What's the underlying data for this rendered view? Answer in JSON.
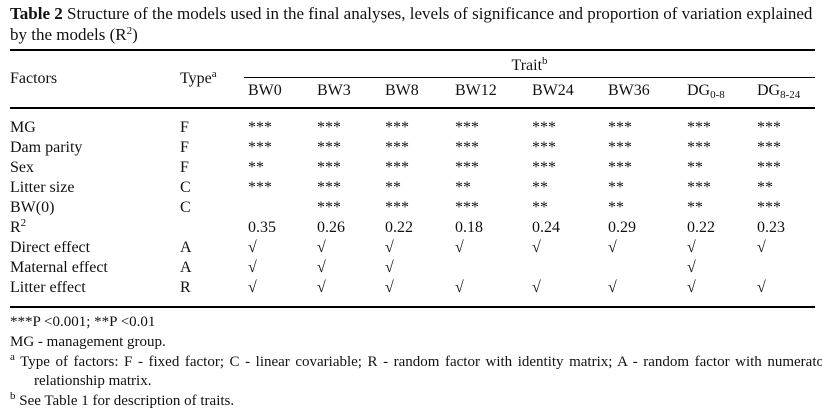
{
  "title": {
    "bold": "Table 2",
    "text": "Structure of the models used in the final analyses, levels of significance and proportion of variation explained by the models (R",
    "sup": "2",
    "tail": ")"
  },
  "table": {
    "factors_header": "Factors",
    "type_header": {
      "text": "Type",
      "sup": "a"
    },
    "trait_header": {
      "text": "Trait",
      "sup": "b"
    },
    "trait_columns": [
      {
        "text": "BW0"
      },
      {
        "text": "BW3"
      },
      {
        "text": "BW8"
      },
      {
        "text": "BW12"
      },
      {
        "text": "BW24"
      },
      {
        "text": "BW36"
      },
      {
        "text": "DG",
        "sub": "0-8"
      },
      {
        "text": "DG",
        "sub": "8-24"
      }
    ],
    "rows": [
      {
        "label": {
          "text": "MG"
        },
        "type": "F",
        "cells": [
          "***",
          "***",
          "***",
          "***",
          "***",
          "***",
          "***",
          "***"
        ]
      },
      {
        "label": {
          "text": "Dam parity"
        },
        "type": "F",
        "cells": [
          "***",
          "***",
          "***",
          "***",
          "***",
          "***",
          "***",
          "***"
        ]
      },
      {
        "label": {
          "text": "Sex"
        },
        "type": "F",
        "cells": [
          "**",
          "***",
          "***",
          "***",
          "***",
          "***",
          "**",
          "***"
        ]
      },
      {
        "label": {
          "text": "Litter size"
        },
        "type": "C",
        "cells": [
          "***",
          "***",
          "**",
          "**",
          "**",
          "**",
          "***",
          "**"
        ]
      },
      {
        "label": {
          "text": "BW(0)"
        },
        "type": "C",
        "cells": [
          "",
          "***",
          "***",
          "***",
          "**",
          "**",
          "**",
          "***"
        ]
      },
      {
        "label": {
          "text": "R",
          "sup": "2"
        },
        "type": "",
        "cells": [
          "0.35",
          "0.26",
          "0.22",
          "0.18",
          "0.24",
          "0.29",
          "0.22",
          "0.23"
        ]
      },
      {
        "label": {
          "text": "Direct effect"
        },
        "type": "A",
        "cells": [
          "√",
          "√",
          "√",
          "√",
          "√",
          "√",
          "√",
          "√"
        ]
      },
      {
        "label": {
          "text": "Maternal effect"
        },
        "type": "A",
        "cells": [
          "√",
          "√",
          "√",
          "",
          "",
          "",
          "√",
          ""
        ]
      },
      {
        "label": {
          "text": "Litter effect"
        },
        "type": "R",
        "cells": [
          "√",
          "√",
          "√",
          "√",
          "√",
          "√",
          "√",
          "√"
        ]
      }
    ]
  },
  "footnotes": {
    "significance": "***P <0.001; **P <0.01",
    "mg": "MG - management group.",
    "a": {
      "sup": "a",
      "text": "Type of factors: F - fixed factor; C - linear covariable; R - random factor with identity matrix; A - random factor with numerator relationship matrix."
    },
    "b": {
      "sup": "b",
      "text": "See Table 1 for description of traits."
    }
  }
}
